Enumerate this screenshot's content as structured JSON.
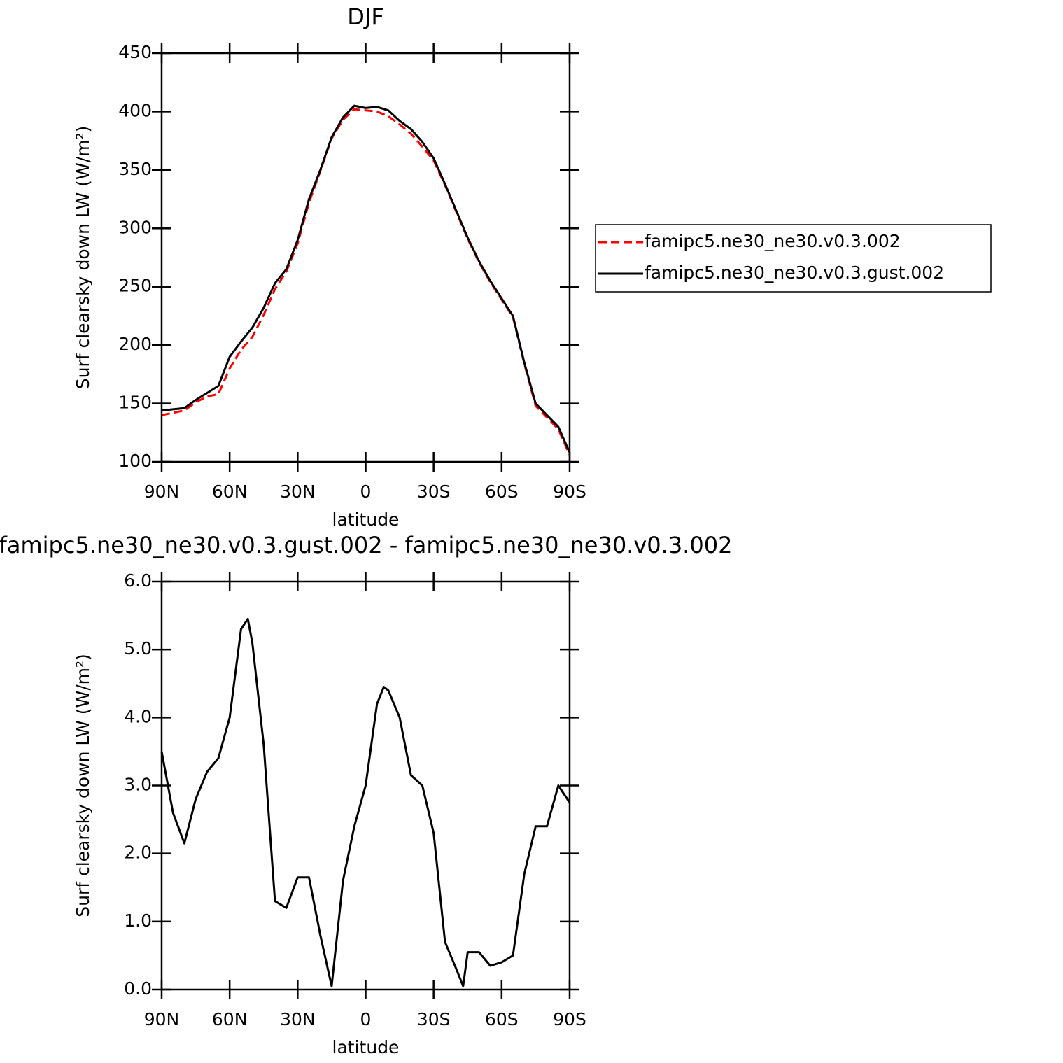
{
  "chart_data": [
    {
      "type": "line",
      "title": "DJF",
      "x_label": "latitude",
      "y_label": "Surf clearsky down LW (W/m²)",
      "x": [
        90,
        85,
        80,
        75,
        70,
        65,
        60,
        55,
        50,
        45,
        40,
        35,
        30,
        25,
        20,
        15,
        10,
        5,
        0,
        -5,
        -10,
        -15,
        -20,
        -25,
        -30,
        -35,
        -40,
        -45,
        -50,
        -55,
        -60,
        -65,
        -70,
        -75,
        -80,
        -85,
        -90
      ],
      "series": [
        {
          "name": "famipc5.ne30_ne30.v0.3.002",
          "color": "#ff0000",
          "linestyle": "dashed",
          "values": [
            140,
            142,
            144,
            151,
            156,
            158,
            180,
            196,
            207,
            226,
            248,
            263,
            287,
            322,
            349,
            377,
            393,
            402,
            401,
            400,
            396,
            389,
            381,
            370,
            358,
            337,
            314,
            291,
            271,
            254,
            239,
            224,
            184,
            148,
            138,
            128,
            106
          ]
        },
        {
          "name": "famipc5.ne30_ne30.v0.3.gust.002",
          "color": "#000000",
          "linestyle": "solid",
          "values": [
            144,
            145,
            146,
            153,
            159,
            165,
            190,
            203,
            215,
            232,
            253,
            265,
            290,
            325,
            350,
            378,
            395,
            405,
            403,
            404,
            401,
            392,
            385,
            374,
            360,
            338,
            315,
            292,
            272,
            255,
            240,
            225,
            185,
            150,
            140,
            130,
            108
          ]
        }
      ],
      "xlim": [
        90,
        -90
      ],
      "xticks": [
        {
          "value": 90,
          "label": "90N"
        },
        {
          "value": 60,
          "label": "60N"
        },
        {
          "value": 30,
          "label": "30N"
        },
        0,
        {
          "value": -30,
          "label": "30S"
        },
        {
          "value": -60,
          "label": "60S"
        },
        {
          "value": -90,
          "label": "90S"
        }
      ],
      "ylim": [
        100,
        450
      ],
      "yticks": [
        100,
        150,
        200,
        250,
        300,
        350,
        400,
        450
      ],
      "legend": "right"
    },
    {
      "type": "line",
      "title": "famipc5.ne30_ne30.v0.3.gust.002 - famipc5.ne30_ne30.v0.3.002",
      "x_label": "latitude",
      "y_label": "Surf clearsky down LW (W/m²)",
      "x": [
        90,
        85,
        80,
        75,
        70,
        65,
        60,
        55,
        52,
        50,
        45,
        40,
        35,
        30,
        25,
        20,
        15,
        10,
        5,
        0,
        -5,
        -8,
        -10,
        -15,
        -20,
        -25,
        -30,
        -35,
        -40,
        -43,
        -45,
        -50,
        -55,
        -60,
        -65,
        -70,
        -75,
        -80,
        -85,
        -90
      ],
      "series": [
        {
          "color": "#000000",
          "linestyle": "solid",
          "values": [
            3.5,
            2.6,
            2.15,
            2.8,
            3.2,
            3.4,
            4.0,
            5.3,
            5.45,
            5.1,
            3.6,
            1.3,
            1.2,
            1.65,
            1.65,
            0.8,
            0.05,
            1.6,
            2.4,
            3.0,
            4.2,
            4.45,
            4.4,
            4.0,
            3.15,
            3.0,
            2.3,
            0.7,
            0.3,
            0.05,
            0.55,
            0.55,
            0.35,
            0.4,
            0.5,
            1.7,
            2.4,
            2.4,
            3.0,
            2.75
          ]
        }
      ],
      "xlim": [
        90,
        -90
      ],
      "xticks": [
        {
          "value": 90,
          "label": "90N"
        },
        {
          "value": 60,
          "label": "60N"
        },
        {
          "value": 30,
          "label": "30N"
        },
        0,
        {
          "value": -30,
          "label": "30S"
        },
        {
          "value": -60,
          "label": "60S"
        },
        {
          "value": -90,
          "label": "90S"
        }
      ],
      "ylim": [
        0,
        6
      ],
      "yticks": [
        {
          "value": 0,
          "label": "0.0"
        },
        {
          "value": 1,
          "label": "1.0"
        },
        {
          "value": 2,
          "label": "2.0"
        },
        {
          "value": 3,
          "label": "3.0"
        },
        {
          "value": 4,
          "label": "4.0"
        },
        {
          "value": 5,
          "label": "5.0"
        },
        {
          "value": 6,
          "label": "6.0"
        }
      ]
    }
  ]
}
